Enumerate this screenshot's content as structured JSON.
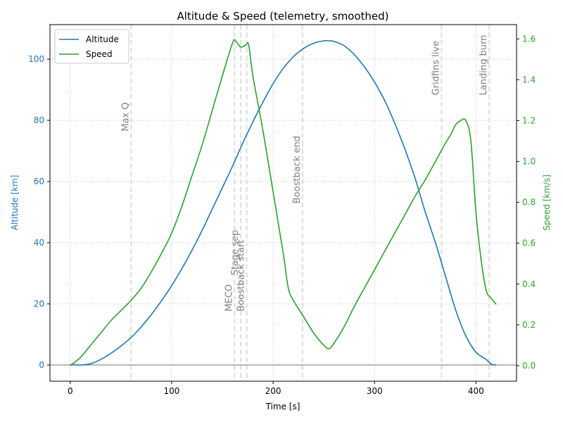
{
  "chart_data": {
    "type": "line",
    "title": "Altitude & Speed (telemetry, smoothed)",
    "xlabel": "Time [s]",
    "ylabel_left": "Altitude [km]",
    "ylabel_right": "Speed [km/s]",
    "xlim": [
      -20,
      440
    ],
    "ylim_left": [
      -5.3,
      111.3
    ],
    "ylim_right": [
      -0.076,
      1.67
    ],
    "x_ticks": [
      0,
      100,
      200,
      300,
      400
    ],
    "y_left_ticks": [
      0,
      20,
      40,
      60,
      80,
      100
    ],
    "y_right_ticks": [
      0.0,
      0.2,
      0.4,
      0.6,
      0.8,
      1.0,
      1.2,
      1.4,
      1.6
    ],
    "y_right_tick_labels": [
      "0.0",
      "0.2",
      "0.4",
      "0.6",
      "0.8",
      "1.0",
      "1.2",
      "1.4",
      "1.6"
    ],
    "grid": true,
    "legend_position": "top-left",
    "colors": {
      "altitude": "#1f77b4",
      "speed": "#2ca02c",
      "events": "#dddddd",
      "event_text": "#808080",
      "zero_line": "#808080",
      "grid": "#b0b0b0"
    },
    "series": [
      {
        "name": "Altitude",
        "axis": "left",
        "color": "#1f77b4",
        "x": [
          0,
          10,
          20,
          30,
          40,
          50,
          60,
          70,
          80,
          90,
          100,
          110,
          120,
          130,
          140,
          150,
          160,
          170,
          180,
          190,
          200,
          210,
          220,
          230,
          240,
          250,
          255,
          260,
          270,
          280,
          290,
          300,
          310,
          320,
          330,
          340,
          350,
          360,
          370,
          380,
          390,
          400,
          410,
          415,
          420
        ],
        "y": [
          0.2,
          0,
          0.4,
          1.8,
          3.8,
          6.2,
          9,
          12.5,
          16.5,
          21,
          26,
          31.5,
          37.5,
          44,
          51,
          58,
          65,
          72.5,
          79.5,
          86,
          92,
          97,
          100.8,
          103.5,
          105.2,
          106,
          106,
          105.8,
          104.4,
          101.5,
          97.5,
          92.5,
          86.5,
          79,
          70.5,
          61,
          50,
          40,
          29,
          18,
          9.5,
          4.2,
          1.8,
          0.3,
          0
        ]
      },
      {
        "name": "Speed",
        "axis": "right",
        "color": "#2ca02c",
        "x": [
          0,
          10,
          20,
          30,
          40,
          50,
          60,
          70,
          80,
          90,
          100,
          110,
          120,
          130,
          140,
          150,
          160,
          163,
          168,
          173,
          176,
          180,
          190,
          200,
          210,
          215,
          220,
          230,
          240,
          250,
          255,
          260,
          270,
          280,
          290,
          300,
          310,
          320,
          330,
          340,
          350,
          360,
          370,
          375,
          380,
          385,
          390,
          395,
          400,
          405,
          410,
          415,
          420
        ],
        "y": [
          0,
          0.04,
          0.1,
          0.16,
          0.22,
          0.27,
          0.32,
          0.38,
          0.46,
          0.55,
          0.65,
          0.78,
          0.93,
          1.08,
          1.25,
          1.42,
          1.58,
          1.59,
          1.56,
          1.57,
          1.57,
          1.42,
          1.15,
          0.85,
          0.55,
          0.38,
          0.32,
          0.24,
          0.16,
          0.1,
          0.083,
          0.11,
          0.19,
          0.29,
          0.38,
          0.47,
          0.56,
          0.65,
          0.74,
          0.83,
          0.91,
          1.0,
          1.09,
          1.13,
          1.18,
          1.2,
          1.2,
          1.1,
          0.75,
          0.52,
          0.37,
          0.33,
          0.3
        ]
      }
    ],
    "events": [
      {
        "t": 60,
        "label": "Max Q",
        "label_y_km": 76.4
      },
      {
        "t": 162,
        "label": "MECO",
        "label_y_km": 17.5
      },
      {
        "t": 168,
        "label": "Stage sep",
        "label_y_km": 29.3
      },
      {
        "t": 174,
        "label": "Boostback start",
        "label_y_km": 17.5
      },
      {
        "t": 229,
        "label": "Boostback end",
        "label_y_km": 52.8
      },
      {
        "t": 366,
        "label": "Gridfins live",
        "label_y_km": 88.2
      },
      {
        "t": 413,
        "label": "Landing burn",
        "label_y_km": 88.2
      }
    ]
  }
}
